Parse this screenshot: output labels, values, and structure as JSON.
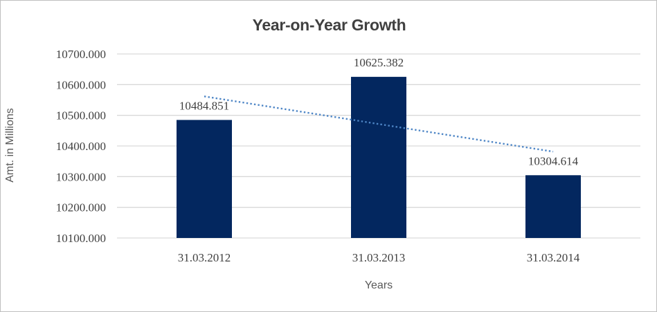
{
  "chart_data": {
    "type": "bar",
    "title": "Year-on-Year Growth",
    "xlabel": "Years",
    "ylabel": "Amt. in Millions",
    "categories": [
      "31.03.2012",
      "31.03.2013",
      "31.03.2014"
    ],
    "values": [
      10484.851,
      10625.382,
      10304.614
    ],
    "data_labels": [
      "10484.851",
      "10625.382",
      "10304.614"
    ],
    "y_tick_labels": [
      "10100.000",
      "10200.000",
      "10300.000",
      "10400.000",
      "10500.000",
      "10600.000",
      "10700.000"
    ],
    "ylim": [
      10100,
      10700
    ],
    "y_step": 100,
    "grid": true,
    "legend": "none",
    "trendline": {
      "kind": "linear",
      "style": "dotted"
    },
    "colors": {
      "bar": "#03275f",
      "trendline": "#4e86c6",
      "gridline": "#d9d9d9",
      "axis_line": "#d9d9d9",
      "title_text": "#404040",
      "tick_text": "#404040",
      "axis_title_text": "#595959",
      "background": "#ffffff",
      "border": "#bfbfbf"
    }
  }
}
